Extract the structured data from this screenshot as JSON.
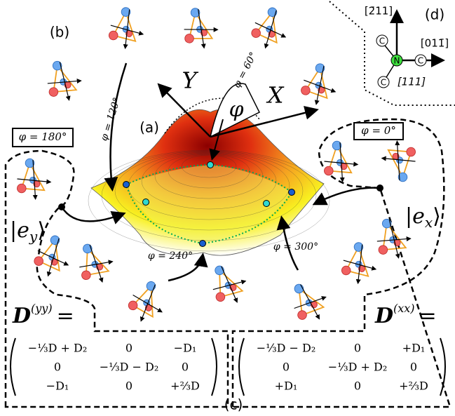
{
  "panels": {
    "a": "(a)",
    "b": "(b)",
    "c": "(c)",
    "d": "(d)"
  },
  "axes": {
    "x": "X",
    "y": "Y",
    "phi": "φ"
  },
  "angles": {
    "phi_0": "φ = 0°",
    "phi_60": "φ = 60°",
    "phi_120": "φ = 120°",
    "phi_180": "φ = 180°",
    "phi_240": "φ = 240°",
    "phi_300": "φ = 300°"
  },
  "states": {
    "ey": {
      "open": "|",
      "base": "e",
      "sub": "y",
      "close": "⟩"
    },
    "ex": {
      "open": "|",
      "base": "e",
      "sub": "x",
      "close": "⟩"
    }
  },
  "matrices": {
    "yy": {
      "symbol": "D",
      "sup": "(yy)",
      "eq": "=",
      "rows": [
        [
          "−⅓D + D₂",
          "0",
          "−D₁"
        ],
        [
          "0",
          "−⅓D − D₂",
          "0"
        ],
        [
          "−D₁",
          "0",
          "+⅔D"
        ]
      ]
    },
    "xx": {
      "symbol": "D",
      "sup": "(xx)",
      "eq": "=",
      "rows": [
        [
          "−⅓D − D₂",
          "0",
          "+D₁"
        ],
        [
          "0",
          "−⅓D + D₂",
          "0"
        ],
        [
          "+D₁",
          "0",
          "+⅔D"
        ]
      ]
    }
  },
  "crystal": {
    "directions": [
      "[2̄11]",
      "[011̄]",
      "[111]"
    ],
    "atoms": [
      "C",
      "C",
      "C",
      "N"
    ]
  }
}
